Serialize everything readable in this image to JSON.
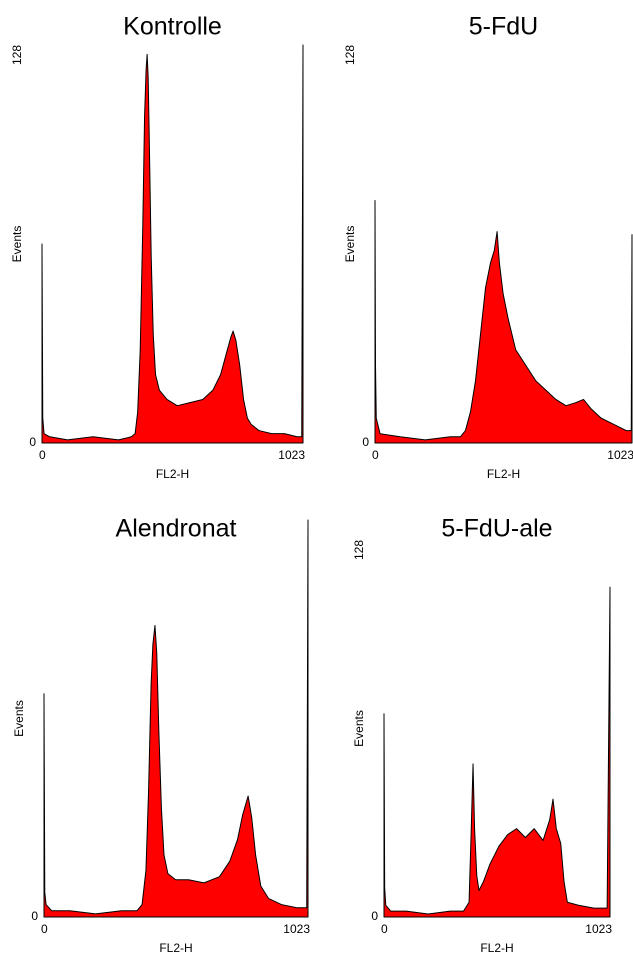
{
  "chart_data": [
    {
      "type": "area",
      "title": "Kontrolle",
      "xlabel": "FL2-H",
      "ylabel": "Events",
      "color": "#ff0000",
      "x": [
        0,
        3,
        8,
        30,
        100,
        200,
        300,
        350,
        365,
        375,
        385,
        395,
        402,
        408,
        412,
        416,
        420,
        428,
        436,
        445,
        460,
        490,
        530,
        580,
        630,
        670,
        700,
        720,
        740,
        749,
        760,
        775,
        790,
        805,
        820,
        850,
        900,
        950,
        1000,
        1018,
        1023
      ],
      "values": [
        64,
        8,
        3,
        2,
        1,
        2,
        1,
        2,
        3,
        10,
        30,
        70,
        105,
        120,
        125,
        118,
        100,
        60,
        35,
        22,
        17,
        14,
        12,
        13,
        14,
        17,
        22,
        28,
        34,
        36,
        33,
        25,
        14,
        8,
        6,
        4,
        3,
        3,
        2,
        2,
        128
      ],
      "xlim": [
        0,
        1023
      ],
      "ylim": [
        0,
        128
      ],
      "xticks": [
        0,
        1023
      ],
      "yticks": [
        0,
        128
      ]
    },
    {
      "type": "area",
      "title": "5-FdU",
      "xlabel": "FL2-H",
      "ylabel": "Events",
      "color": "#ff0000",
      "x": [
        0,
        2,
        5,
        20,
        100,
        200,
        300,
        340,
        360,
        380,
        400,
        420,
        440,
        460,
        475,
        486,
        495,
        510,
        530,
        560,
        600,
        640,
        680,
        720,
        760,
        800,
        830,
        860,
        900,
        950,
        1000,
        1020,
        1023
      ],
      "values": [
        78,
        25,
        8,
        3,
        2,
        1,
        2,
        2,
        4,
        10,
        20,
        35,
        50,
        58,
        62,
        68,
        58,
        48,
        40,
        30,
        25,
        20,
        17,
        14,
        12,
        13,
        14,
        11,
        8,
        6,
        4,
        4,
        67
      ],
      "xlim": [
        0,
        1023
      ],
      "ylim": [
        0,
        128
      ],
      "xticks": [
        0,
        1023
      ],
      "yticks": [
        0,
        128
      ]
    },
    {
      "type": "area",
      "title": "Alendronat",
      "xlabel": "FL2-H",
      "ylabel": "Events",
      "color": "#ff0000",
      "x": [
        0,
        3,
        8,
        30,
        100,
        200,
        300,
        360,
        380,
        395,
        405,
        415,
        422,
        430,
        437,
        445,
        455,
        465,
        480,
        510,
        560,
        620,
        680,
        720,
        750,
        770,
        791,
        805,
        820,
        840,
        870,
        920,
        980,
        1018,
        1023
      ],
      "values": [
        72,
        8,
        4,
        2,
        2,
        1,
        2,
        2,
        4,
        15,
        40,
        75,
        88,
        94,
        85,
        60,
        35,
        20,
        14,
        12,
        12,
        11,
        13,
        18,
        25,
        33,
        39,
        32,
        20,
        10,
        6,
        4,
        3,
        3,
        128
      ],
      "xlim": [
        0,
        1023
      ],
      "ylim": [
        0,
        128
      ],
      "xticks": [
        0,
        1023
      ],
      "yticks": [
        0
      ]
    },
    {
      "type": "area",
      "title": "5-FdU-ale",
      "xlabel": "FL2-H",
      "ylabel": "Events",
      "color": "#ff0000",
      "x": [
        0,
        3,
        8,
        30,
        100,
        200,
        300,
        360,
        385,
        395,
        403,
        410,
        420,
        430,
        450,
        480,
        520,
        560,
        600,
        640,
        680,
        720,
        750,
        765,
        780,
        800,
        815,
        830,
        880,
        950,
        1010,
        1023
      ],
      "values": [
        69,
        10,
        4,
        2,
        2,
        1,
        2,
        2,
        5,
        30,
        52,
        30,
        14,
        9,
        12,
        18,
        24,
        28,
        30,
        27,
        30,
        26,
        33,
        40,
        30,
        25,
        12,
        5,
        4,
        3,
        3,
        112
      ],
      "xlim": [
        0,
        1023
      ],
      "ylim": [
        0,
        128
      ],
      "xticks": [
        0,
        1023
      ],
      "yticks": [
        0,
        128
      ]
    }
  ]
}
